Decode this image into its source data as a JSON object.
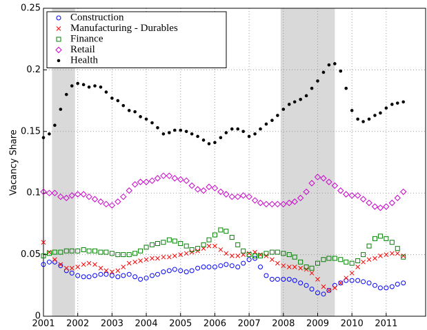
{
  "chart_data": {
    "type": "scatter",
    "y_label": "Vacancy Share",
    "x": [
      2001,
      2001.17,
      2001.33,
      2001.5,
      2001.67,
      2001.83,
      2002,
      2002.17,
      2002.33,
      2002.5,
      2002.67,
      2002.83,
      2003,
      2003.17,
      2003.33,
      2003.5,
      2003.67,
      2003.83,
      2004,
      2004.17,
      2004.33,
      2004.5,
      2004.67,
      2004.83,
      2005,
      2005.17,
      2005.33,
      2005.5,
      2005.67,
      2005.83,
      2006,
      2006.17,
      2006.33,
      2006.5,
      2006.67,
      2006.83,
      2007,
      2007.17,
      2007.33,
      2007.5,
      2007.67,
      2007.83,
      2008,
      2008.17,
      2008.33,
      2008.5,
      2008.67,
      2008.83,
      2009,
      2009.17,
      2009.33,
      2009.5,
      2009.67,
      2009.83,
      2010,
      2010.17,
      2010.33,
      2010.5,
      2010.67,
      2010.83,
      2011,
      2011.17,
      2011.33,
      2011.5
    ],
    "series": [
      {
        "name": "Construction",
        "color": "#0000ff",
        "marker": "circle",
        "values": [
          0.042,
          0.044,
          0.044,
          0.041,
          0.037,
          0.035,
          0.033,
          0.032,
          0.032,
          0.033,
          0.034,
          0.034,
          0.033,
          0.032,
          0.033,
          0.034,
          0.032,
          0.03,
          0.031,
          0.033,
          0.034,
          0.036,
          0.037,
          0.038,
          0.037,
          0.036,
          0.037,
          0.039,
          0.04,
          0.04,
          0.04,
          0.041,
          0.042,
          0.041,
          0.04,
          0.043,
          0.046,
          0.047,
          0.04,
          0.033,
          0.03,
          0.03,
          0.03,
          0.03,
          0.029,
          0.027,
          0.025,
          0.022,
          0.019,
          0.018,
          0.021,
          0.025,
          0.027,
          0.029,
          0.029,
          0.029,
          0.028,
          0.027,
          0.025,
          0.023,
          0.023,
          0.024,
          0.026,
          0.027
        ]
      },
      {
        "name": "Manufacturing - Durables",
        "color": "#ff0000",
        "marker": "x",
        "values": [
          0.06,
          0.052,
          0.046,
          0.042,
          0.039,
          0.039,
          0.04,
          0.042,
          0.043,
          0.042,
          0.039,
          0.037,
          0.036,
          0.037,
          0.04,
          0.043,
          0.044,
          0.045,
          0.046,
          0.047,
          0.047,
          0.048,
          0.048,
          0.049,
          0.05,
          0.051,
          0.052,
          0.053,
          0.055,
          0.057,
          0.057,
          0.054,
          0.051,
          0.049,
          0.049,
          0.05,
          0.051,
          0.052,
          0.05,
          0.049,
          0.046,
          0.043,
          0.041,
          0.04,
          0.04,
          0.039,
          0.038,
          0.035,
          0.03,
          0.024,
          0.021,
          0.023,
          0.027,
          0.031,
          0.035,
          0.04,
          0.044,
          0.046,
          0.047,
          0.049,
          0.05,
          0.051,
          0.051,
          0.049
        ]
      },
      {
        "name": "Finance",
        "color": "#008000",
        "marker": "square",
        "values": [
          0.049,
          0.051,
          0.052,
          0.052,
          0.053,
          0.053,
          0.053,
          0.054,
          0.053,
          0.053,
          0.052,
          0.052,
          0.051,
          0.05,
          0.05,
          0.05,
          0.051,
          0.053,
          0.056,
          0.058,
          0.059,
          0.06,
          0.062,
          0.061,
          0.059,
          0.057,
          0.054,
          0.055,
          0.058,
          0.062,
          0.066,
          0.07,
          0.069,
          0.064,
          0.058,
          0.053,
          0.05,
          0.049,
          0.049,
          0.051,
          0.052,
          0.052,
          0.051,
          0.05,
          0.048,
          0.044,
          0.04,
          0.039,
          0.043,
          0.046,
          0.047,
          0.047,
          0.046,
          0.044,
          0.043,
          0.045,
          0.05,
          0.057,
          0.063,
          0.065,
          0.063,
          0.06,
          0.055,
          0.048
        ]
      },
      {
        "name": "Retail",
        "color": "#cc00cc",
        "marker": "diamond",
        "values": [
          0.101,
          0.1,
          0.1,
          0.097,
          0.096,
          0.098,
          0.099,
          0.099,
          0.097,
          0.095,
          0.093,
          0.091,
          0.09,
          0.093,
          0.097,
          0.102,
          0.107,
          0.109,
          0.109,
          0.11,
          0.112,
          0.114,
          0.114,
          0.112,
          0.111,
          0.11,
          0.106,
          0.103,
          0.102,
          0.105,
          0.104,
          0.101,
          0.099,
          0.097,
          0.097,
          0.098,
          0.097,
          0.094,
          0.092,
          0.091,
          0.091,
          0.091,
          0.091,
          0.092,
          0.093,
          0.096,
          0.101,
          0.108,
          0.113,
          0.112,
          0.109,
          0.106,
          0.102,
          0.099,
          0.098,
          0.098,
          0.095,
          0.092,
          0.089,
          0.088,
          0.089,
          0.092,
          0.096,
          0.101
        ]
      },
      {
        "name": "Health",
        "color": "#000000",
        "marker": "dot",
        "values": [
          0.145,
          0.148,
          0.155,
          0.168,
          0.18,
          0.187,
          0.189,
          0.188,
          0.186,
          0.187,
          0.186,
          0.182,
          0.177,
          0.175,
          0.171,
          0.167,
          0.166,
          0.162,
          0.16,
          0.157,
          0.153,
          0.148,
          0.149,
          0.151,
          0.151,
          0.15,
          0.148,
          0.146,
          0.143,
          0.14,
          0.141,
          0.145,
          0.149,
          0.152,
          0.152,
          0.15,
          0.146,
          0.148,
          0.152,
          0.156,
          0.159,
          0.163,
          0.168,
          0.172,
          0.174,
          0.176,
          0.179,
          0.185,
          0.191,
          0.198,
          0.204,
          0.205,
          0.199,
          0.185,
          0.167,
          0.16,
          0.158,
          0.16,
          0.163,
          0.165,
          0.169,
          0.172,
          0.173,
          0.174
        ]
      }
    ],
    "recessions": [
      [
        2001.25,
        2001.92
      ],
      [
        2007.92,
        2009.5
      ]
    ],
    "recession_color": "#d9d9d9",
    "xlim": [
      2001,
      2012.15
    ],
    "xticks": [
      2001,
      2002,
      2003,
      2004,
      2005,
      2006,
      2007,
      2008,
      2009,
      2010,
      2011
    ],
    "ylim": [
      0,
      0.25
    ],
    "yticks": [
      0,
      0.05,
      0.1,
      0.15,
      0.2,
      0.25
    ],
    "grid": true,
    "legend": "upper-left"
  }
}
